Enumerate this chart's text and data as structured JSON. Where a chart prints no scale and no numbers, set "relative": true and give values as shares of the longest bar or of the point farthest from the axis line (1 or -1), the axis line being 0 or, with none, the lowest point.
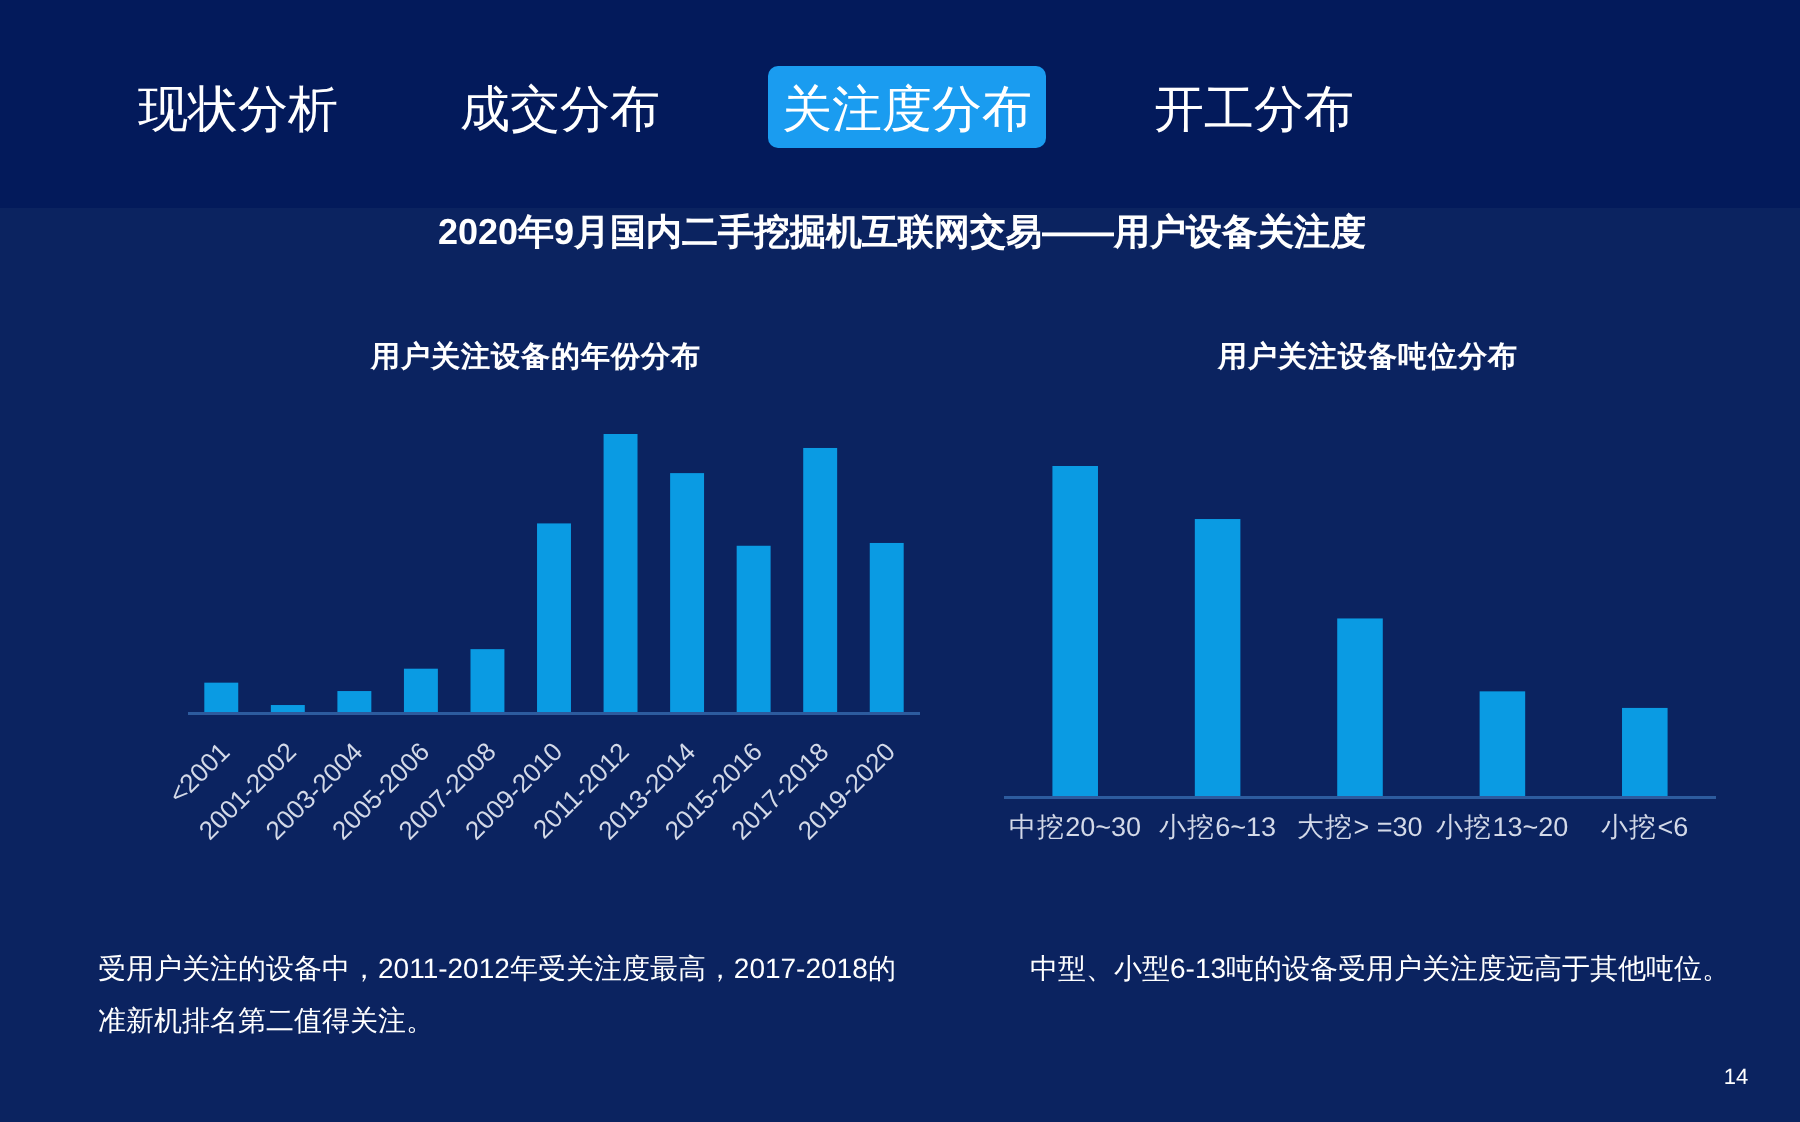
{
  "chart_data": [
    {
      "type": "other",
      "categories": [
        "现状分析",
        "成交分布",
        "关注度分布",
        "开工分布"
      ],
      "colors": [
        null,
        null,
        "#1a9cf0",
        null
      ],
      "title": "2020年9月国内二手挖掘机互联网交易——用户设备关注度",
      "annotations": [
        "14"
      ]
    },
    {
      "type": "bar",
      "title": "用户关注设备的年份分布",
      "categories": [
        "<2001",
        "2001-2002",
        "2003-2004",
        "2005-2006",
        "2007-2008",
        "2009-2010",
        "2011-2012",
        "2013-2014",
        "2015-2016",
        "2017-2018",
        "2019-2020"
      ],
      "values": [
        0.11,
        0.03,
        0.08,
        0.16,
        0.23,
        0.68,
        1,
        0.86,
        0.6,
        0.95,
        0.61
      ],
      "color": "#0a9be3",
      "relative": true,
      "annotations": [
        "受用户关注的设备中，2011-2012年受关注度最高，2017-2018的准新机排名第二值得关注。"
      ]
    },
    {
      "type": "bar",
      "title": "用户关注设备吨位分布",
      "categories": [
        "中挖20~30",
        "小挖6~13",
        "大挖> =30",
        "小挖13~20",
        "小挖<6"
      ],
      "values": [
        1,
        0.84,
        0.54,
        0.32,
        0.27
      ],
      "color": "#0a9be3",
      "relative": true,
      "annotations": [
        "中型、小型6-13吨的设备受用户关注度远高于其他吨位。"
      ]
    }
  ]
}
